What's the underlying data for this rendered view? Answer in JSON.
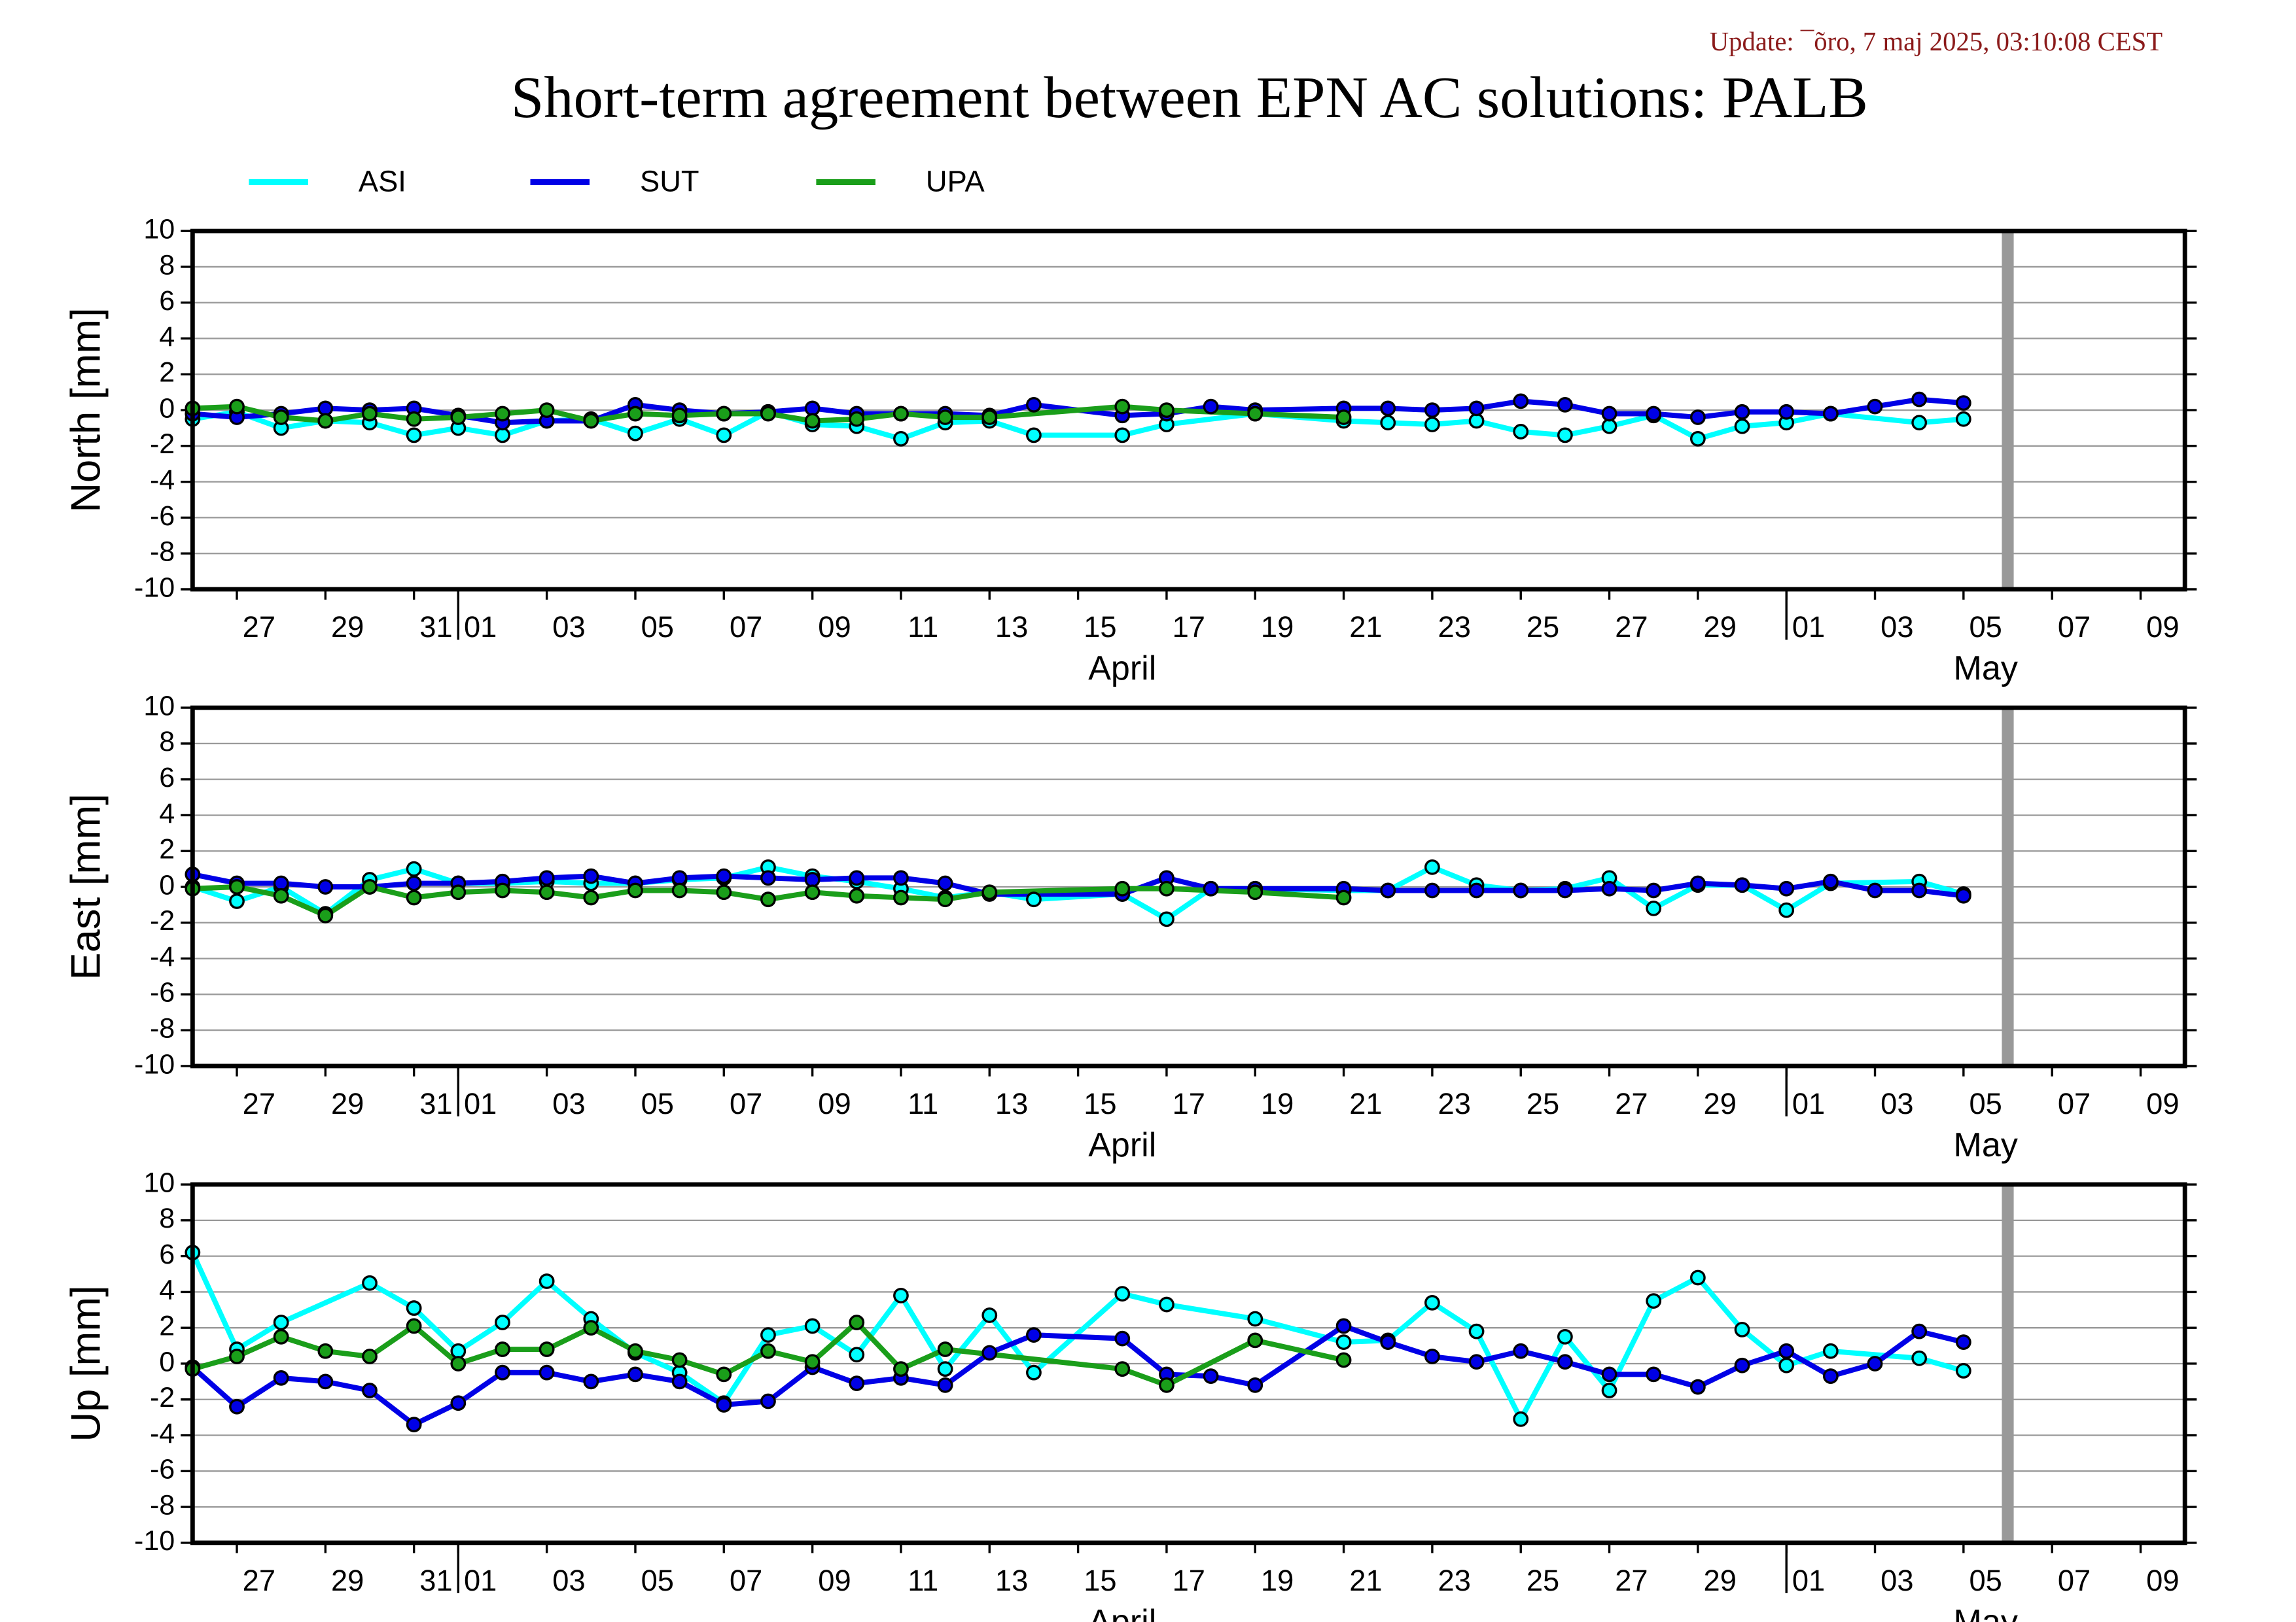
{
  "chart_data": [
    {
      "type": "line",
      "title": "Short-term agreement between EPN AC solutions: PALB",
      "subtitle": "Update: ¯õro, 7 maj 2025, 03:10:08 CEST",
      "ylabel": "North [mm]",
      "ylim": [
        -10,
        10
      ],
      "yticks": [
        -10,
        -8,
        -6,
        -4,
        -2,
        0,
        2,
        4,
        6,
        8,
        10
      ],
      "grid": true,
      "xlim": [
        "03-26",
        "05-10"
      ],
      "marker": "05-06",
      "xticks": [
        {
          "value": "03-27",
          "label": "27"
        },
        {
          "value": "03-29",
          "label": "29"
        },
        {
          "value": "03-31",
          "label": "31"
        },
        {
          "value": "04-01",
          "label": "01"
        },
        {
          "value": "04-03",
          "label": "03"
        },
        {
          "value": "04-05",
          "label": "05"
        },
        {
          "value": "04-07",
          "label": "07"
        },
        {
          "value": "04-09",
          "label": "09"
        },
        {
          "value": "04-11",
          "label": "11"
        },
        {
          "value": "04-13",
          "label": "13"
        },
        {
          "value": "04-15",
          "label": "15"
        },
        {
          "value": "04-17",
          "label": "17"
        },
        {
          "value": "04-19",
          "label": "19"
        },
        {
          "value": "04-21",
          "label": "21"
        },
        {
          "value": "04-23",
          "label": "23"
        },
        {
          "value": "04-25",
          "label": "25"
        },
        {
          "value": "04-27",
          "label": "27"
        },
        {
          "value": "04-29",
          "label": "29"
        },
        {
          "value": "05-01",
          "label": "01"
        },
        {
          "value": "05-03",
          "label": "03"
        },
        {
          "value": "05-05",
          "label": "05"
        },
        {
          "value": "05-07",
          "label": "07"
        },
        {
          "value": "05-09",
          "label": "09"
        }
      ],
      "months": [
        {
          "value": "04-01",
          "label": "April"
        },
        {
          "value": "05-01",
          "label": "May"
        }
      ],
      "series": [
        {
          "name": "ASI",
          "color": "#00ffff",
          "x": [
            "03-26",
            "03-27",
            "03-28",
            "03-29",
            "03-30",
            "03-31",
            "04-01",
            "04-02",
            "04-03",
            "04-04",
            "04-05",
            "04-06",
            "04-07",
            "04-08",
            "04-09",
            "04-10",
            "04-11",
            "04-12",
            "04-13",
            "04-14",
            "04-16",
            "04-17",
            "04-19",
            "04-21",
            "04-22",
            "04-23",
            "04-24",
            "04-25",
            "04-26",
            "04-27",
            "04-28",
            "04-29",
            "04-30",
            "05-01",
            "05-02",
            "05-04",
            "05-05"
          ],
          "values": [
            -0.5,
            -0.1,
            -1.0,
            -0.6,
            -0.7,
            -1.4,
            -1.0,
            -1.4,
            -0.6,
            -0.5,
            -1.3,
            -0.5,
            -1.4,
            -0.1,
            -0.8,
            -0.9,
            -1.6,
            -0.7,
            -0.6,
            -1.4,
            -1.4,
            -0.8,
            -0.2,
            -0.6,
            -0.7,
            -0.8,
            -0.6,
            -1.2,
            -1.4,
            -0.9,
            -0.3,
            -1.6,
            -0.9,
            -0.7,
            -0.2,
            -0.7,
            -0.5
          ]
        },
        {
          "name": "SUT",
          "color": "#0000e6",
          "x": [
            "03-26",
            "03-27",
            "03-28",
            "03-29",
            "03-30",
            "03-31",
            "04-01",
            "04-02",
            "04-03",
            "04-04",
            "04-05",
            "04-06",
            "04-07",
            "04-08",
            "04-09",
            "04-10",
            "04-11",
            "04-12",
            "04-13",
            "04-14",
            "04-16",
            "04-17",
            "04-18",
            "04-19",
            "04-21",
            "04-22",
            "04-23",
            "04-24",
            "04-25",
            "04-26",
            "04-27",
            "04-28",
            "04-29",
            "04-30",
            "05-01",
            "05-02",
            "05-03",
            "05-04",
            "05-05"
          ],
          "values": [
            -0.2,
            -0.4,
            -0.2,
            0.1,
            0.0,
            0.1,
            -0.3,
            -0.7,
            -0.6,
            -0.6,
            0.3,
            0.0,
            -0.2,
            -0.1,
            0.1,
            -0.2,
            -0.2,
            -0.2,
            -0.3,
            0.3,
            -0.3,
            -0.2,
            0.2,
            0.0,
            0.1,
            0.1,
            0.0,
            0.1,
            0.5,
            0.3,
            -0.2,
            -0.2,
            -0.4,
            -0.1,
            -0.1,
            -0.2,
            0.2,
            0.6,
            0.4
          ]
        },
        {
          "name": "UPA",
          "color": "#1a9e1a",
          "x": [
            "03-26",
            "03-27",
            "03-28",
            "03-29",
            "03-30",
            "03-31",
            "04-01",
            "04-02",
            "04-03",
            "04-04",
            "04-05",
            "04-06",
            "04-07",
            "04-08",
            "04-09",
            "04-10",
            "04-11",
            "04-12",
            "04-13",
            "04-16",
            "04-17",
            "04-19",
            "04-21"
          ],
          "values": [
            0.1,
            0.2,
            -0.4,
            -0.6,
            -0.2,
            -0.5,
            -0.4,
            -0.2,
            0.0,
            -0.6,
            -0.2,
            -0.3,
            -0.2,
            -0.2,
            -0.6,
            -0.5,
            -0.2,
            -0.4,
            -0.4,
            0.2,
            0.0,
            -0.2,
            -0.4
          ]
        }
      ]
    },
    {
      "type": "line",
      "ylabel": "East [mm]",
      "ylim": [
        -10,
        10
      ],
      "yticks": [
        -10,
        -8,
        -6,
        -4,
        -2,
        0,
        2,
        4,
        6,
        8,
        10
      ],
      "grid": true,
      "xlim": [
        "03-26",
        "05-10"
      ],
      "marker": "05-06",
      "xticks": [
        {
          "value": "03-27",
          "label": "27"
        },
        {
          "value": "03-29",
          "label": "29"
        },
        {
          "value": "03-31",
          "label": "31"
        },
        {
          "value": "04-01",
          "label": "01"
        },
        {
          "value": "04-03",
          "label": "03"
        },
        {
          "value": "04-05",
          "label": "05"
        },
        {
          "value": "04-07",
          "label": "07"
        },
        {
          "value": "04-09",
          "label": "09"
        },
        {
          "value": "04-11",
          "label": "11"
        },
        {
          "value": "04-13",
          "label": "13"
        },
        {
          "value": "04-15",
          "label": "15"
        },
        {
          "value": "04-17",
          "label": "17"
        },
        {
          "value": "04-19",
          "label": "19"
        },
        {
          "value": "04-21",
          "label": "21"
        },
        {
          "value": "04-23",
          "label": "23"
        },
        {
          "value": "04-25",
          "label": "25"
        },
        {
          "value": "04-27",
          "label": "27"
        },
        {
          "value": "04-29",
          "label": "29"
        },
        {
          "value": "05-01",
          "label": "01"
        },
        {
          "value": "05-03",
          "label": "03"
        },
        {
          "value": "05-05",
          "label": "05"
        },
        {
          "value": "05-07",
          "label": "07"
        },
        {
          "value": "05-09",
          "label": "09"
        }
      ],
      "months": [
        {
          "value": "04-01",
          "label": "April"
        },
        {
          "value": "05-01",
          "label": "May"
        }
      ],
      "series": [
        {
          "color": "#00ffff",
          "x": [
            "03-26",
            "03-27",
            "03-28",
            "03-29",
            "03-30",
            "03-31",
            "04-01",
            "04-02",
            "04-03",
            "04-04",
            "04-05",
            "04-06",
            "04-07",
            "04-08",
            "04-09",
            "04-10",
            "04-11",
            "04-12",
            "04-13",
            "04-14",
            "04-16",
            "04-17",
            "04-18",
            "04-19",
            "04-21",
            "04-22",
            "04-23",
            "04-24",
            "04-25",
            "04-26",
            "04-27",
            "04-28",
            "04-29",
            "04-30",
            "05-01",
            "05-02",
            "05-04",
            "05-05"
          ],
          "values": [
            0.0,
            -0.8,
            0.0,
            -1.5,
            0.4,
            1.0,
            0.2,
            0.2,
            0.3,
            0.2,
            0.2,
            0.4,
            0.5,
            1.1,
            0.6,
            0.3,
            -0.1,
            -0.6,
            -0.3,
            -0.7,
            -0.4,
            -1.8,
            -0.1,
            -0.1,
            -0.2,
            -0.2,
            1.1,
            0.1,
            -0.2,
            -0.1,
            0.5,
            -1.2,
            0.1,
            0.1,
            -1.3,
            0.2,
            0.3,
            -0.4
          ]
        },
        {
          "color": "#0000e6",
          "x": [
            "03-26",
            "03-27",
            "03-28",
            "03-29",
            "03-30",
            "03-31",
            "04-01",
            "04-02",
            "04-03",
            "04-04",
            "04-05",
            "04-06",
            "04-07",
            "04-08",
            "04-09",
            "04-10",
            "04-11",
            "04-12",
            "04-13",
            "04-16",
            "04-17",
            "04-18",
            "04-19",
            "04-21",
            "04-22",
            "04-23",
            "04-24",
            "04-25",
            "04-26",
            "04-27",
            "04-28",
            "04-29",
            "04-30",
            "05-01",
            "05-02",
            "05-03",
            "05-04",
            "05-05"
          ],
          "values": [
            0.7,
            0.2,
            0.2,
            0.0,
            0.0,
            0.2,
            0.2,
            0.3,
            0.5,
            0.6,
            0.2,
            0.5,
            0.6,
            0.5,
            0.4,
            0.5,
            0.5,
            0.2,
            -0.4,
            -0.4,
            0.5,
            -0.1,
            -0.1,
            -0.1,
            -0.2,
            -0.2,
            -0.2,
            -0.2,
            -0.2,
            -0.1,
            -0.2,
            0.2,
            0.1,
            -0.1,
            0.3,
            -0.2,
            -0.2,
            -0.5
          ]
        },
        {
          "color": "#1a9e1a",
          "x": [
            "03-26",
            "03-27",
            "03-28",
            "03-29",
            "03-30",
            "03-31",
            "04-01",
            "04-02",
            "04-03",
            "04-04",
            "04-05",
            "04-06",
            "04-07",
            "04-08",
            "04-09",
            "04-10",
            "04-11",
            "04-12",
            "04-13",
            "04-16",
            "04-17",
            "04-19",
            "04-21"
          ],
          "values": [
            -0.1,
            0.0,
            -0.5,
            -1.6,
            0.0,
            -0.6,
            -0.3,
            -0.2,
            -0.3,
            -0.6,
            -0.2,
            -0.2,
            -0.3,
            -0.7,
            -0.3,
            -0.5,
            -0.6,
            -0.7,
            -0.3,
            -0.1,
            -0.1,
            -0.3,
            -0.6
          ]
        }
      ]
    },
    {
      "type": "line",
      "ylabel": "Up [mm]",
      "ylim": [
        -10,
        10
      ],
      "yticks": [
        -10,
        -8,
        -6,
        -4,
        -2,
        0,
        2,
        4,
        6,
        8,
        10
      ],
      "grid": true,
      "xlim": [
        "03-26",
        "05-10"
      ],
      "marker": "05-06",
      "xticks": [
        {
          "value": "03-27",
          "label": "27"
        },
        {
          "value": "03-29",
          "label": "29"
        },
        {
          "value": "03-31",
          "label": "31"
        },
        {
          "value": "04-01",
          "label": "01"
        },
        {
          "value": "04-03",
          "label": "03"
        },
        {
          "value": "04-05",
          "label": "05"
        },
        {
          "value": "04-07",
          "label": "07"
        },
        {
          "value": "04-09",
          "label": "09"
        },
        {
          "value": "04-11",
          "label": "11"
        },
        {
          "value": "04-13",
          "label": "13"
        },
        {
          "value": "04-15",
          "label": "15"
        },
        {
          "value": "04-17",
          "label": "17"
        },
        {
          "value": "04-19",
          "label": "19"
        },
        {
          "value": "04-21",
          "label": "21"
        },
        {
          "value": "04-23",
          "label": "23"
        },
        {
          "value": "04-25",
          "label": "25"
        },
        {
          "value": "04-27",
          "label": "27"
        },
        {
          "value": "04-29",
          "label": "29"
        },
        {
          "value": "05-01",
          "label": "01"
        },
        {
          "value": "05-03",
          "label": "03"
        },
        {
          "value": "05-05",
          "label": "05"
        },
        {
          "value": "05-07",
          "label": "07"
        },
        {
          "value": "05-09",
          "label": "09"
        }
      ],
      "months": [
        {
          "value": "04-01",
          "label": "April"
        },
        {
          "value": "05-01",
          "label": "May"
        }
      ],
      "series": [
        {
          "color": "#00ffff",
          "x": [
            "03-26",
            "03-27",
            "03-28",
            "03-30",
            "03-31",
            "04-01",
            "04-02",
            "04-03",
            "04-04",
            "04-05",
            "04-06",
            "04-07",
            "04-08",
            "04-09",
            "04-10",
            "04-11",
            "04-12",
            "04-13",
            "04-14",
            "04-16",
            "04-17",
            "04-19",
            "04-21",
            "04-22",
            "04-23",
            "04-24",
            "04-25",
            "04-26",
            "04-27",
            "04-28",
            "04-29",
            "04-30",
            "05-01",
            "05-02",
            "05-04",
            "05-05"
          ],
          "values": [
            6.2,
            0.8,
            2.3,
            4.5,
            3.1,
            0.7,
            2.3,
            4.6,
            2.5,
            0.6,
            -0.5,
            -2.2,
            1.6,
            2.1,
            0.5,
            3.8,
            -0.3,
            2.7,
            -0.5,
            3.9,
            3.3,
            2.5,
            1.2,
            1.3,
            3.4,
            1.8,
            -3.1,
            1.5,
            -1.5,
            3.5,
            4.8,
            1.9,
            -0.1,
            0.7,
            0.3,
            -0.4
          ]
        },
        {
          "color": "#0000e6",
          "x": [
            "03-26",
            "03-27",
            "03-28",
            "03-29",
            "03-30",
            "03-31",
            "04-01",
            "04-02",
            "04-03",
            "04-04",
            "04-05",
            "04-06",
            "04-07",
            "04-08",
            "04-09",
            "04-10",
            "04-11",
            "04-12",
            "04-13",
            "04-14",
            "04-16",
            "04-17",
            "04-18",
            "04-19",
            "04-21",
            "04-22",
            "04-23",
            "04-24",
            "04-25",
            "04-26",
            "04-27",
            "04-28",
            "04-29",
            "04-30",
            "05-01",
            "05-02",
            "05-03",
            "05-04",
            "05-05"
          ],
          "values": [
            -0.2,
            -2.4,
            -0.8,
            -1.0,
            -1.5,
            -3.4,
            -2.2,
            -0.5,
            -0.5,
            -1.0,
            -0.6,
            -1.0,
            -2.3,
            -2.1,
            -0.2,
            -1.1,
            -0.8,
            -1.2,
            0.6,
            1.6,
            1.4,
            -0.6,
            -0.7,
            -1.2,
            2.1,
            1.2,
            0.4,
            0.1,
            0.7,
            0.1,
            -0.6,
            -0.6,
            -1.3,
            -0.1,
            0.7,
            -0.7,
            0.0,
            1.8,
            1.2
          ]
        },
        {
          "color": "#1a9e1a",
          "x": [
            "03-26",
            "03-27",
            "03-28",
            "03-29",
            "03-30",
            "03-31",
            "04-01",
            "04-02",
            "04-03",
            "04-04",
            "04-05",
            "04-06",
            "04-07",
            "04-08",
            "04-09",
            "04-10",
            "04-11",
            "04-12",
            "04-16",
            "04-17",
            "04-19",
            "04-21"
          ],
          "values": [
            -0.3,
            0.4,
            1.5,
            0.7,
            0.4,
            2.1,
            0.0,
            0.8,
            0.8,
            2.0,
            0.7,
            0.2,
            -0.6,
            0.7,
            0.1,
            2.3,
            -0.3,
            0.8,
            -0.3,
            -1.2,
            1.3,
            0.2
          ]
        }
      ]
    }
  ]
}
